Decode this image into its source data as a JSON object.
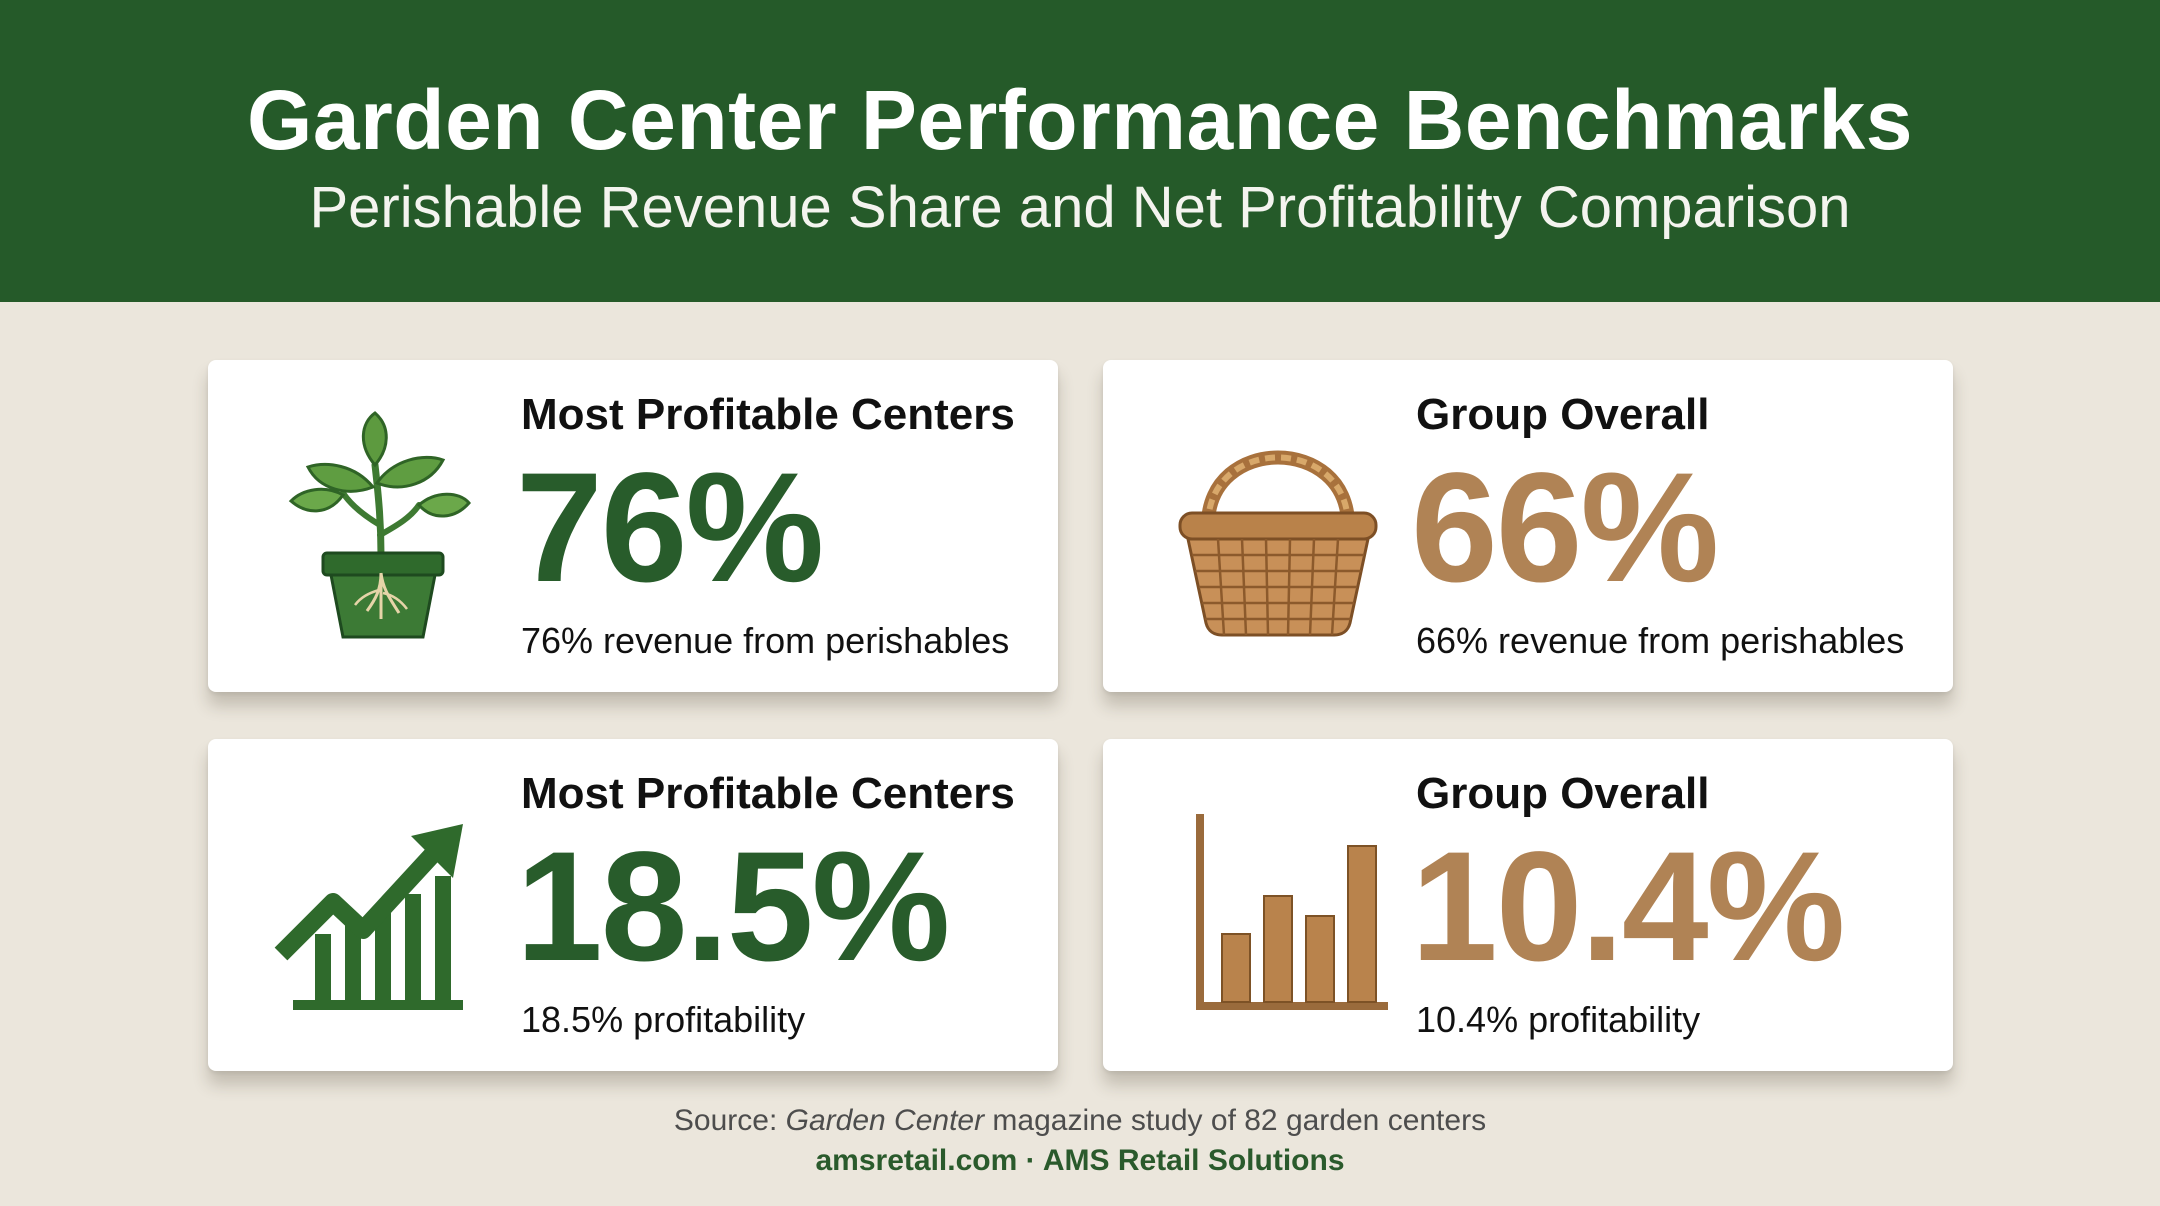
{
  "header": {
    "title": "Garden Center Performance Benchmarks",
    "subtitle": "Perishable Revenue Share and Net Profitability Comparison"
  },
  "cards": [
    {
      "label": "Most Profitable Centers",
      "value": "76%",
      "caption": "76% revenue from perishables",
      "icon": "plant-pot-icon",
      "accent": "#285c2b"
    },
    {
      "label": "Group Overall",
      "value": "66%",
      "caption": "66% revenue from perishables",
      "icon": "basket-icon",
      "accent": "#b08355"
    },
    {
      "label": "Most Profitable Centers",
      "value": "18.5%",
      "caption": "18.5% profitability",
      "icon": "rising-chart-icon",
      "accent": "#285c2b"
    },
    {
      "label": "Group Overall",
      "value": "10.4%",
      "caption": "10.4% profitability",
      "icon": "bar-chart-icon",
      "accent": "#b08355"
    }
  ],
  "source": {
    "prefix": "Source: ",
    "publication": "Garden Center",
    "suffix": " magazine study of 82 garden centers"
  },
  "footer": {
    "text": "amsretail.com · AMS Retail Solutions"
  },
  "colors": {
    "header_bg": "#255a29",
    "page_bg": "#ebe6dc",
    "green": "#285c2b",
    "tan": "#b08355"
  }
}
